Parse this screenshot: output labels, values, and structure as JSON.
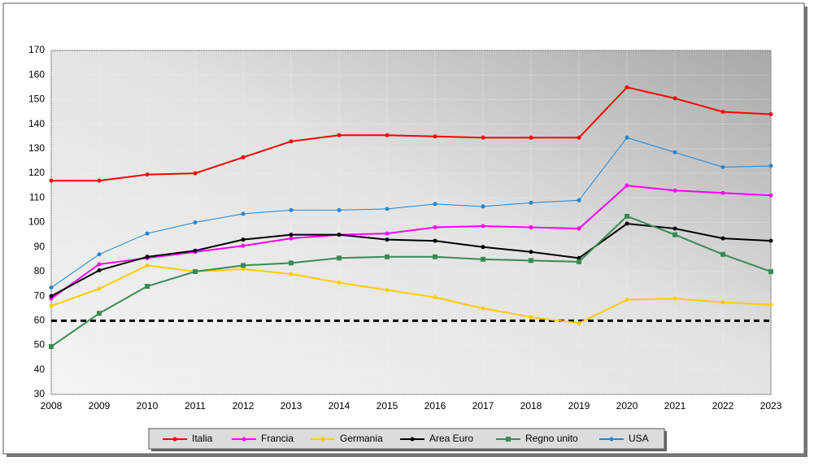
{
  "chart_data": {
    "type": "line",
    "categories": [
      "2008",
      "2009",
      "2010",
      "2011",
      "2012",
      "2013",
      "2014",
      "2015",
      "2016",
      "2017",
      "2018",
      "2019",
      "2020",
      "2021",
      "2022",
      "2023"
    ],
    "series": [
      {
        "name": "Italia",
        "color": "#ff0000",
        "marker": "circle",
        "values": [
          117,
          117,
          119.5,
          120,
          126.5,
          133,
          135.5,
          135.5,
          135,
          134.5,
          134.5,
          134.5,
          155,
          150.5,
          145,
          144
        ]
      },
      {
        "name": "Francia",
        "color": "#ff00ff",
        "marker": "circle",
        "values": [
          69,
          83,
          85.5,
          88,
          90.5,
          93.5,
          95,
          95.5,
          98,
          98.5,
          98,
          97.5,
          115,
          113,
          112,
          111
        ]
      },
      {
        "name": "Germania",
        "color": "#ffcc00",
        "marker": "circle",
        "values": [
          66,
          73,
          82.5,
          80,
          81,
          79,
          75.5,
          72.5,
          69.5,
          65,
          61.5,
          59,
          68.5,
          69,
          67.5,
          66.5
        ]
      },
      {
        "name": "Area Euro",
        "color": "#000000",
        "marker": "circle",
        "values": [
          70,
          80.5,
          86,
          88.5,
          93,
          95,
          95,
          93,
          92.5,
          90,
          88,
          85.5,
          99.5,
          97.5,
          93.5,
          92.5
        ]
      },
      {
        "name": "Regno unito",
        "color": "#3a8a55",
        "marker": "square",
        "values": [
          49.5,
          63,
          74,
          80,
          82.5,
          83.5,
          85.5,
          86,
          86,
          85,
          84.5,
          84,
          102.5,
          95,
          87,
          80
        ]
      },
      {
        "name": "USA",
        "color": "#1f86d6",
        "marker": "circle",
        "values": [
          73.5,
          87,
          95.5,
          100,
          103.5,
          105,
          105,
          105.5,
          107.5,
          106.5,
          108,
          109,
          134.5,
          128.5,
          122.5,
          123
        ]
      }
    ],
    "reference_line": 60,
    "ylim": [
      30,
      170
    ],
    "yticks": [
      30,
      40,
      50,
      60,
      70,
      80,
      90,
      100,
      110,
      120,
      130,
      140,
      150,
      160,
      170
    ],
    "grid": true,
    "legend": "bottom"
  }
}
